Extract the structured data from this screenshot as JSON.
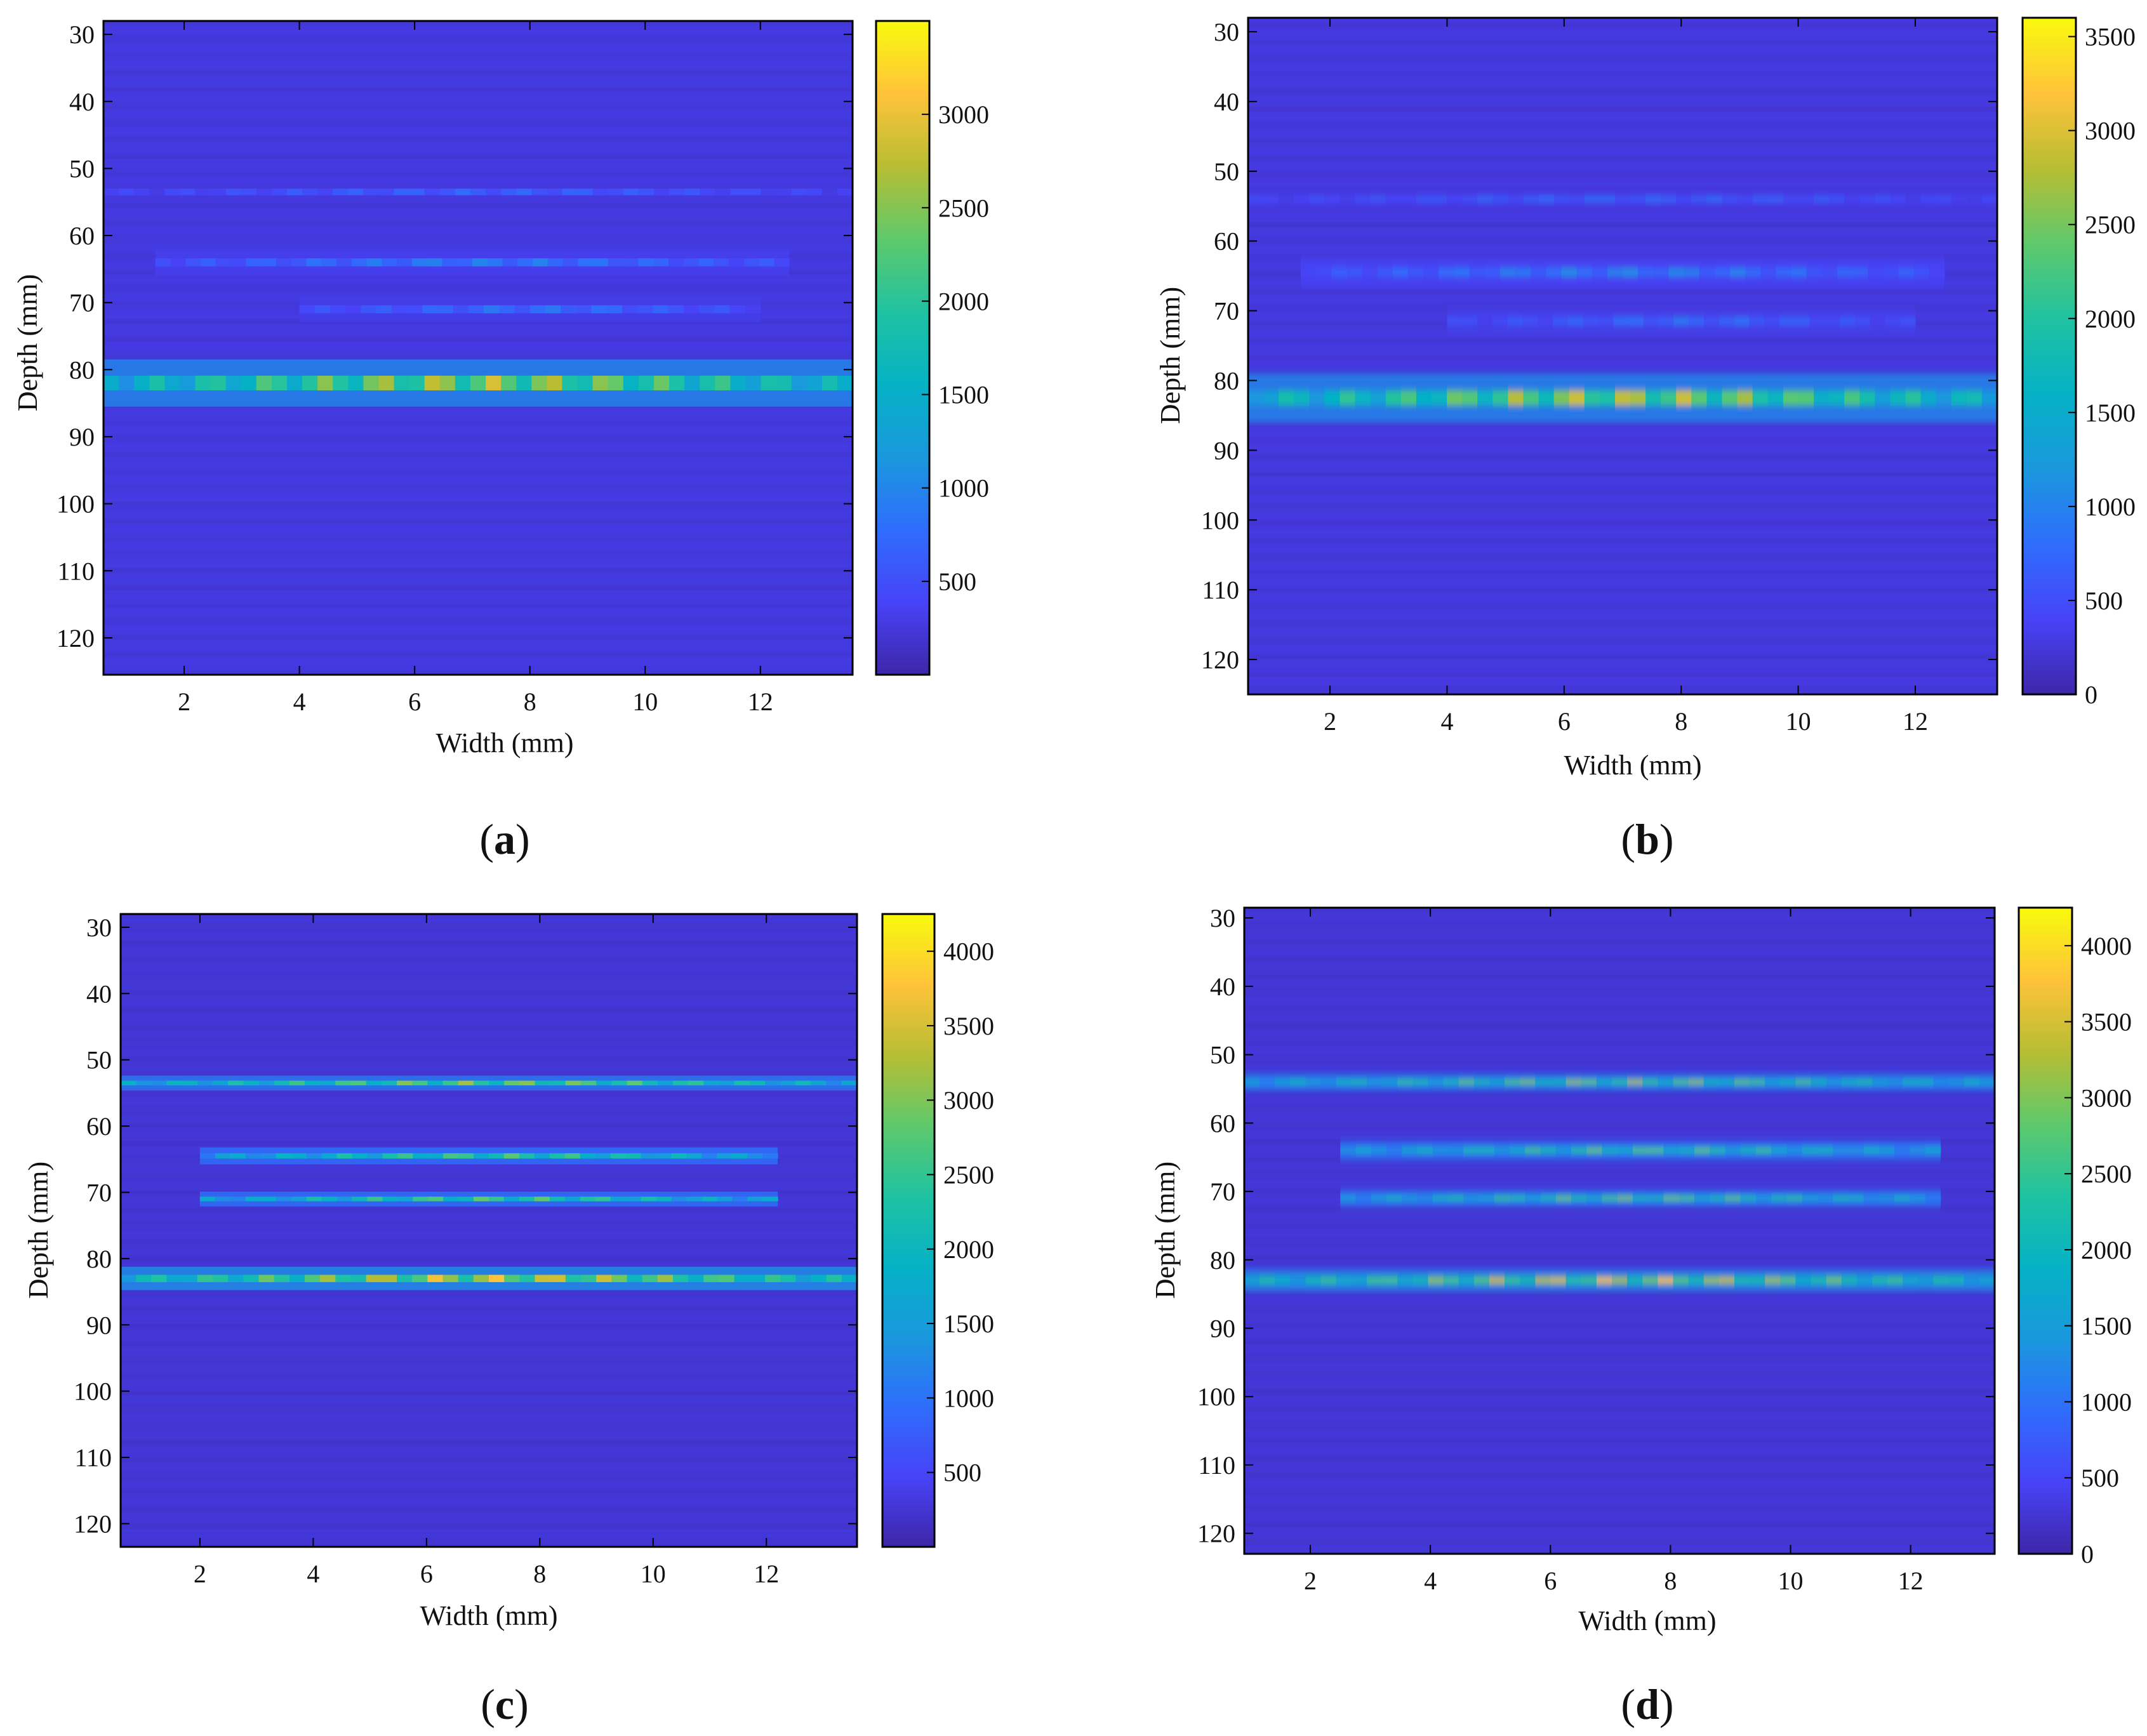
{
  "colormap": [
    "#3e26a8",
    "#4743f8",
    "#2f6dfc",
    "#1a98dd",
    "#05b2c5",
    "#20c2a1",
    "#5fc96b",
    "#b8bd33",
    "#ffc33a",
    "#f8fa0d"
  ],
  "chart_data": [
    {
      "type": "heatmap",
      "panel": "a",
      "caption": "a",
      "xlabel": "Width (mm)",
      "ylabel": "Depth (mm)",
      "xlim": [
        0.6,
        13.6
      ],
      "ylim": [
        125.5,
        28
      ],
      "xticks": [
        2,
        4,
        6,
        8,
        10,
        12
      ],
      "yticks": [
        30,
        40,
        50,
        60,
        70,
        80,
        90,
        100,
        110,
        120
      ],
      "colorbar": {
        "min": 0,
        "max": 3500,
        "ticks": [
          500,
          1000,
          1500,
          2000,
          2500,
          3000
        ]
      },
      "background": 250,
      "smooth": false,
      "bands": [
        {
          "depth": 53.5,
          "x_start": 0.6,
          "x_end": 13.6,
          "peak_intensity": 750,
          "thickness": 1.0
        },
        {
          "depth": 64,
          "x_start": 1.5,
          "x_end": 12.5,
          "peak_intensity": 1000,
          "thickness": 1.2
        },
        {
          "depth": 71,
          "x_start": 4.0,
          "x_end": 12.0,
          "peak_intensity": 900,
          "thickness": 1.2
        },
        {
          "depth": 82,
          "x_start": 0.6,
          "x_end": 13.6,
          "peak_intensity": 2900,
          "thickness": 2.2
        }
      ]
    },
    {
      "type": "heatmap",
      "panel": "b",
      "caption": "b",
      "xlabel": "Width (mm)",
      "ylabel": "Depth (mm)",
      "xlim": [
        0.6,
        13.4
      ],
      "ylim": [
        125,
        28
      ],
      "xticks": [
        2,
        4,
        6,
        8,
        10,
        12
      ],
      "yticks": [
        30,
        40,
        50,
        60,
        70,
        80,
        90,
        100,
        110,
        120
      ],
      "colorbar": {
        "min": 0,
        "max": 3600,
        "ticks": [
          0,
          500,
          1000,
          1500,
          2000,
          2500,
          3000,
          3500
        ]
      },
      "background": 250,
      "smooth": true,
      "bands": [
        {
          "depth": 54,
          "x_start": 0.6,
          "x_end": 13.4,
          "peak_intensity": 800,
          "thickness": 1.0
        },
        {
          "depth": 64.5,
          "x_start": 1.5,
          "x_end": 12.5,
          "peak_intensity": 1100,
          "thickness": 1.3
        },
        {
          "depth": 71.5,
          "x_start": 4.0,
          "x_end": 12.0,
          "peak_intensity": 900,
          "thickness": 1.2
        },
        {
          "depth": 82.5,
          "x_start": 0.6,
          "x_end": 13.4,
          "peak_intensity": 3000,
          "thickness": 2.2
        }
      ]
    },
    {
      "type": "heatmap",
      "panel": "c",
      "caption": "c",
      "xlabel": "Width (mm)",
      "ylabel": "Depth (mm)",
      "xlim": [
        0.6,
        13.6
      ],
      "ylim": [
        123.5,
        28
      ],
      "xticks": [
        2,
        4,
        6,
        8,
        10,
        12
      ],
      "yticks": [
        30,
        40,
        50,
        60,
        70,
        80,
        90,
        100,
        110,
        120
      ],
      "colorbar": {
        "min": 0,
        "max": 4250,
        "ticks": [
          500,
          1000,
          1500,
          2000,
          2500,
          3000,
          3500,
          4000
        ]
      },
      "background": 250,
      "smooth": false,
      "bands": [
        {
          "depth": 53.5,
          "x_start": 0.6,
          "x_end": 13.6,
          "peak_intensity": 3200,
          "thickness": 0.7
        },
        {
          "depth": 64.5,
          "x_start": 2.0,
          "x_end": 12.2,
          "peak_intensity": 2800,
          "thickness": 0.8
        },
        {
          "depth": 71,
          "x_start": 2.0,
          "x_end": 12.2,
          "peak_intensity": 2900,
          "thickness": 0.7
        },
        {
          "depth": 83,
          "x_start": 0.6,
          "x_end": 13.6,
          "peak_intensity": 3800,
          "thickness": 1.1
        }
      ]
    },
    {
      "type": "heatmap",
      "panel": "d",
      "caption": "d",
      "xlabel": "Width (mm)",
      "ylabel": "Depth (mm)",
      "xlim": [
        0.9,
        13.4
      ],
      "ylim": [
        123,
        28.5
      ],
      "xticks": [
        2,
        4,
        6,
        8,
        10,
        12
      ],
      "yticks": [
        30,
        40,
        50,
        60,
        70,
        80,
        90,
        100,
        110,
        120
      ],
      "colorbar": {
        "min": 0,
        "max": 4250,
        "ticks": [
          0,
          500,
          1000,
          1500,
          2000,
          2500,
          3000,
          3500,
          4000
        ]
      },
      "background": 250,
      "smooth": true,
      "bands": [
        {
          "depth": 54,
          "x_start": 0.9,
          "x_end": 13.4,
          "peak_intensity": 3200,
          "thickness": 0.8
        },
        {
          "depth": 64,
          "x_start": 2.5,
          "x_end": 12.5,
          "peak_intensity": 2900,
          "thickness": 0.9
        },
        {
          "depth": 71,
          "x_start": 2.5,
          "x_end": 12.5,
          "peak_intensity": 3000,
          "thickness": 0.8
        },
        {
          "depth": 83,
          "x_start": 0.9,
          "x_end": 13.4,
          "peak_intensity": 3700,
          "thickness": 1.0
        }
      ]
    }
  ]
}
